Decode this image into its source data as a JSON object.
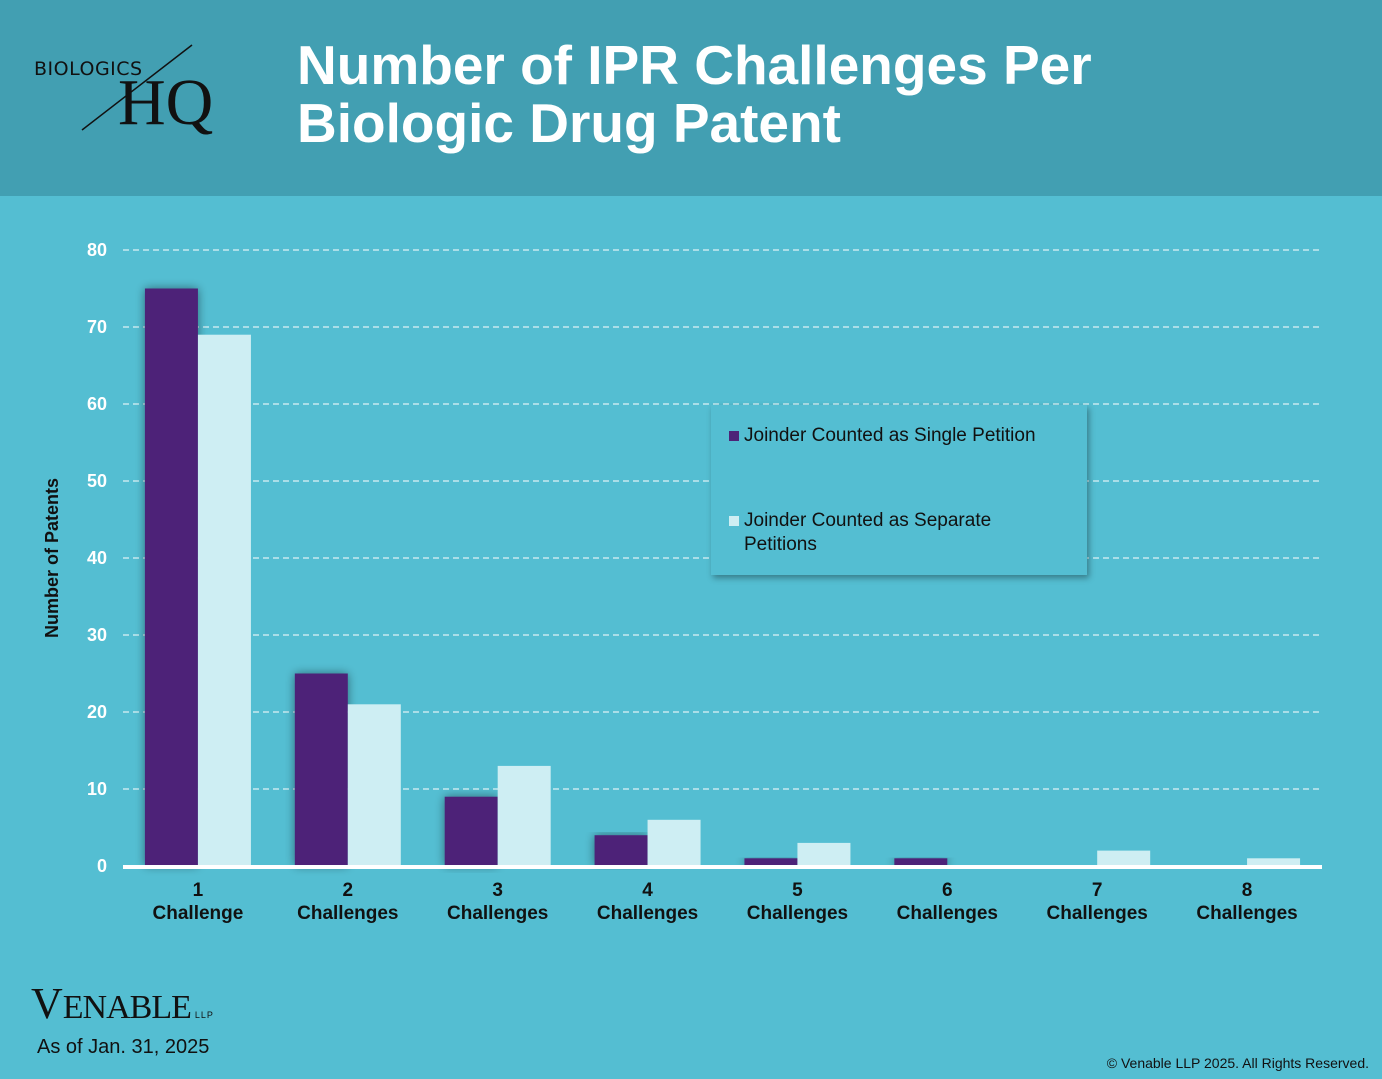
{
  "header": {
    "logo_top": "BIOLOGICS",
    "logo_bottom": "HQ",
    "title_line1": "Number of IPR Challenges Per",
    "title_line2": "Biologic Drug Patent"
  },
  "colors": {
    "header_bg": "#429fb2",
    "page_bg": "#54bed2",
    "series1": "#4d2378",
    "series2": "#ceeef3"
  },
  "chart_data": {
    "type": "bar",
    "title": "Number of IPR Challenges Per Biologic Drug Patent",
    "xlabel": "",
    "ylabel": "Number of Patents",
    "ylim": [
      0,
      80
    ],
    "yticks": [
      0,
      10,
      20,
      30,
      40,
      50,
      60,
      70,
      80
    ],
    "grid": true,
    "legend_position": "center-right",
    "categories": [
      {
        "num": "1",
        "label": "Challenge"
      },
      {
        "num": "2",
        "label": "Challenges"
      },
      {
        "num": "3",
        "label": "Challenges"
      },
      {
        "num": "4",
        "label": "Challenges"
      },
      {
        "num": "5",
        "label": "Challenges"
      },
      {
        "num": "6",
        "label": "Challenges"
      },
      {
        "num": "7",
        "label": "Challenges"
      },
      {
        "num": "8",
        "label": "Challenges"
      }
    ],
    "series": [
      {
        "name": "Joinder Counted as Single Petition",
        "color": "#4d2378",
        "values": [
          75,
          25,
          9,
          4,
          1,
          1,
          0,
          0
        ]
      },
      {
        "name": "Joinder Counted as Separate Petitions",
        "color": "#ceeef3",
        "values": [
          69,
          21,
          13,
          6,
          3,
          0,
          2,
          1
        ]
      }
    ]
  },
  "footer": {
    "brand_initial": "V",
    "brand_rest": "ENABLE",
    "brand_suffix": "LLP",
    "as_of": "As of Jan. 31, 2025",
    "copyright": "© Venable LLP 2025. All Rights Reserved."
  }
}
